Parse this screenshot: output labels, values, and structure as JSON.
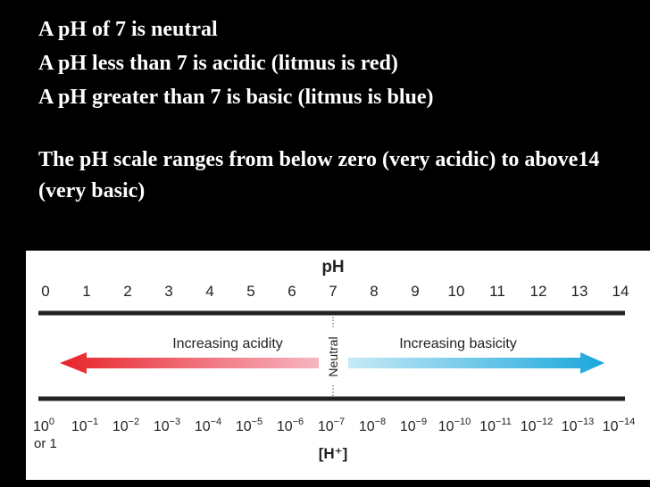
{
  "bullets": [
    "A pH of 7 is neutral",
    "A pH less than 7 is acidic (litmus is red)",
    "A pH greater than 7 is basic (litmus is blue)"
  ],
  "scale_note": "The pH scale ranges from below zero (very acidic) to above14 (very basic)",
  "diagram": {
    "ph_title": "pH",
    "ph_ticks": [
      "0",
      "1",
      "2",
      "3",
      "4",
      "5",
      "6",
      "7",
      "8",
      "9",
      "10",
      "11",
      "12",
      "13",
      "14"
    ],
    "acidity_label": "Increasing acidity",
    "basicity_label": "Increasing basicity",
    "neutral_label": "Neutral",
    "h_bases": [
      "10",
      "10",
      "10",
      "10",
      "10",
      "10",
      "10",
      "10",
      "10",
      "10",
      "10",
      "10",
      "10",
      "10",
      "10"
    ],
    "h_exponents": [
      "0",
      "−1",
      "−2",
      "−3",
      "−4",
      "−5",
      "−6",
      "−7",
      "−8",
      "−9",
      "−10",
      "−11",
      "−12",
      "−13",
      "−14"
    ],
    "or_one": "or 1",
    "h_label": "[H⁺]",
    "colors": {
      "acid_start": "#e8232a",
      "acid_end": "#f6b6c2",
      "base_start": "#c6e9f6",
      "base_end": "#1aa7dc"
    }
  }
}
